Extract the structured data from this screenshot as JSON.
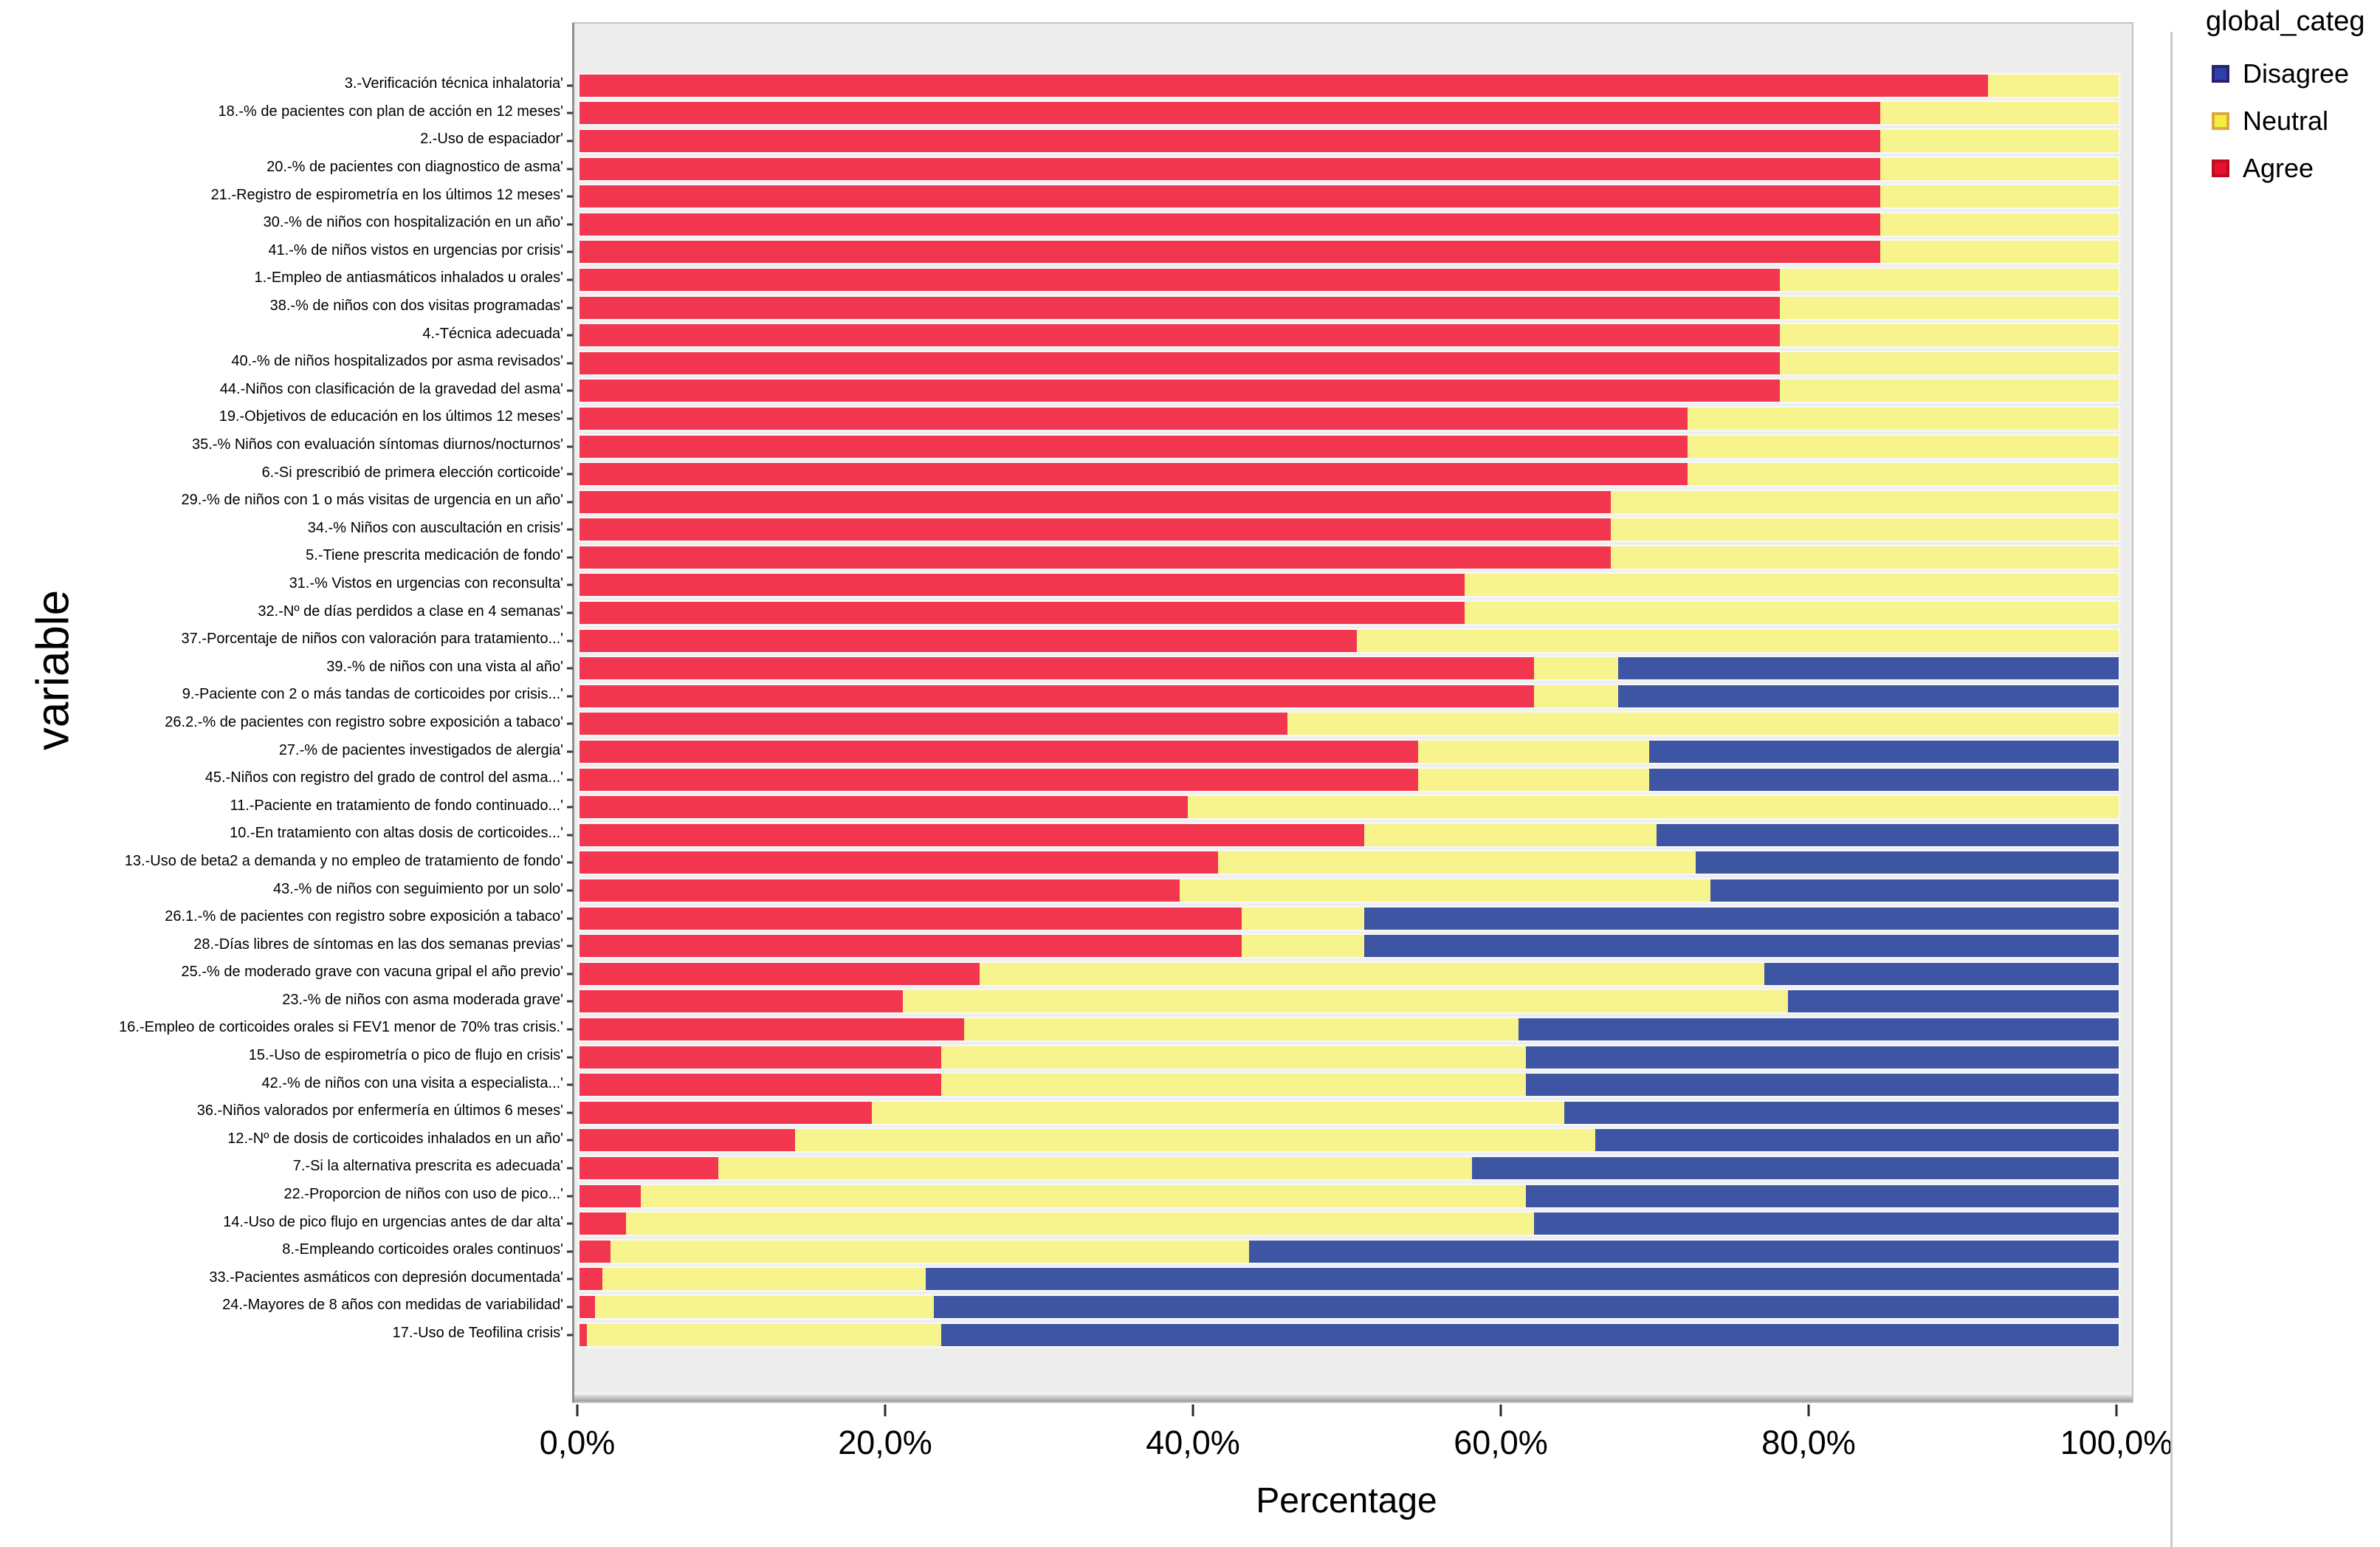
{
  "figure": {
    "y_axis_title": "variable",
    "x_axis_title": "Percentage",
    "legend": {
      "title": "global_categ",
      "items": [
        {
          "label": "Disagree",
          "fill": "#2E3FA8",
          "border": "#2a2370"
        },
        {
          "label": "Neutral",
          "fill": "#F5EE3F",
          "border": "#dfa93a"
        },
        {
          "label": "Agree",
          "fill": "#E9102C",
          "border": "#bb0e1e"
        }
      ]
    }
  },
  "chart_data": {
    "type": "bar",
    "orientation": "horizontal",
    "stacked": true,
    "title": "",
    "xlabel": "Percentage",
    "ylabel": "variable",
    "xlim": [
      0,
      100
    ],
    "grid": false,
    "legend_position": "top-right",
    "x_ticks": [
      "0,0%",
      "20,0%",
      "40,0%",
      "60,0%",
      "80,0%",
      "100,0%"
    ],
    "x_tick_values": [
      0,
      20,
      40,
      60,
      80,
      100
    ],
    "series_names": [
      "Agree",
      "Neutral",
      "Disagree"
    ],
    "colors": {
      "Agree": "#F2364F",
      "Neutral": "#F8F48D",
      "Disagree": "#3E55A4"
    },
    "rows": [
      {
        "label": "3.-Verificación técnica inhalatoria'",
        "agree": 91.5,
        "neutral": 8.5,
        "disagree": 0
      },
      {
        "label": "18.-% de pacientes con plan de acción en 12 meses'",
        "agree": 84.5,
        "neutral": 15.5,
        "disagree": 0
      },
      {
        "label": "2.-Uso de espaciador'",
        "agree": 84.5,
        "neutral": 15.5,
        "disagree": 0
      },
      {
        "label": "20.-% de pacientes con diagnostico de asma'",
        "agree": 84.5,
        "neutral": 15.5,
        "disagree": 0
      },
      {
        "label": "21.-Registro de espirometría en los últimos 12 meses'",
        "agree": 84.5,
        "neutral": 15.5,
        "disagree": 0
      },
      {
        "label": "30.-% de niños con hospitalización en un año'",
        "agree": 84.5,
        "neutral": 15.5,
        "disagree": 0
      },
      {
        "label": "41.-% de niños vistos en urgencias por crisis'",
        "agree": 84.5,
        "neutral": 15.5,
        "disagree": 0
      },
      {
        "label": "1.-Empleo de antiasmáticos inhalados u orales'",
        "agree": 78,
        "neutral": 22,
        "disagree": 0
      },
      {
        "label": "38.-% de niños con dos visitas programadas'",
        "agree": 78,
        "neutral": 22,
        "disagree": 0
      },
      {
        "label": "4.-Técnica adecuada'",
        "agree": 78,
        "neutral": 22,
        "disagree": 0
      },
      {
        "label": "40.-% de niños hospitalizados por asma revisados'",
        "agree": 78,
        "neutral": 22,
        "disagree": 0
      },
      {
        "label": "44.-Niños con clasificación de la gravedad del asma'",
        "agree": 78,
        "neutral": 22,
        "disagree": 0
      },
      {
        "label": "19.-Objetivos de educación en los últimos 12 meses'",
        "agree": 72,
        "neutral": 28,
        "disagree": 0
      },
      {
        "label": "35.-% Niños con evaluación síntomas diurnos/nocturnos'",
        "agree": 72,
        "neutral": 28,
        "disagree": 0
      },
      {
        "label": "6.-Si prescribió de primera elección corticoide'",
        "agree": 72,
        "neutral": 28,
        "disagree": 0
      },
      {
        "label": "29.-% de niños con 1 o más visitas de urgencia en un año'",
        "agree": 67,
        "neutral": 33,
        "disagree": 0
      },
      {
        "label": "34.-% Niños con auscultación en crisis'",
        "agree": 67,
        "neutral": 33,
        "disagree": 0
      },
      {
        "label": "5.-Tiene prescrita medicación de fondo'",
        "agree": 67,
        "neutral": 33,
        "disagree": 0
      },
      {
        "label": "31.-% Vistos en urgencias con reconsulta'",
        "agree": 57.5,
        "neutral": 42.5,
        "disagree": 0
      },
      {
        "label": "32.-Nº de días perdidos a clase en 4 semanas'",
        "agree": 57.5,
        "neutral": 42.5,
        "disagree": 0
      },
      {
        "label": "37.-Porcentaje de niños con valoración para tratamiento...'",
        "agree": 50.5,
        "neutral": 49.5,
        "disagree": 0
      },
      {
        "label": "39.-% de niños con una vista al año'",
        "agree": 62,
        "neutral": 5.5,
        "disagree": 32.5
      },
      {
        "label": "9.-Paciente con 2 o más tandas de corticoides por crisis...'",
        "agree": 62,
        "neutral": 5.5,
        "disagree": 32.5
      },
      {
        "label": "26.2.-% de pacientes con registro sobre exposición a tabaco'",
        "agree": 46,
        "neutral": 54,
        "disagree": 0
      },
      {
        "label": "27.-% de pacientes investigados de alergia'",
        "agree": 54.5,
        "neutral": 15,
        "disagree": 30.5
      },
      {
        "label": "45.-Niños con registro del grado de control del asma...'",
        "agree": 54.5,
        "neutral": 15,
        "disagree": 30.5
      },
      {
        "label": "11.-Paciente en tratamiento de fondo continuado...'",
        "agree": 39.5,
        "neutral": 60.5,
        "disagree": 0
      },
      {
        "label": "10.-En tratamiento con altas dosis de corticoides...'",
        "agree": 51,
        "neutral": 19,
        "disagree": 30
      },
      {
        "label": "13.-Uso de beta2 a demanda y no empleo de tratamiento de fondo'",
        "agree": 41.5,
        "neutral": 31,
        "disagree": 27.5
      },
      {
        "label": "43.-% de niños con seguimiento por un solo'",
        "agree": 39,
        "neutral": 34.5,
        "disagree": 26.5
      },
      {
        "label": "26.1.-% de pacientes con registro sobre exposición a tabaco'",
        "agree": 43,
        "neutral": 8,
        "disagree": 49
      },
      {
        "label": "28.-Días libres de síntomas en las dos semanas previas'",
        "agree": 43,
        "neutral": 8,
        "disagree": 49
      },
      {
        "label": "25.-% de moderado grave con vacuna gripal el año previo'",
        "agree": 26,
        "neutral": 51,
        "disagree": 23
      },
      {
        "label": "23.-% de niños con asma moderada grave'",
        "agree": 21,
        "neutral": 57.5,
        "disagree": 21.5
      },
      {
        "label": "16.-Empleo de corticoides orales si FEV1 menor de 70% tras crisis.'",
        "agree": 25,
        "neutral": 36,
        "disagree": 39
      },
      {
        "label": "15.-Uso de espirometría o pico de flujo en crisis'",
        "agree": 23.5,
        "neutral": 38,
        "disagree": 38.5
      },
      {
        "label": "42.-% de niños con una visita a especialista...'",
        "agree": 23.5,
        "neutral": 38,
        "disagree": 38.5
      },
      {
        "label": "36.-Niños valorados por enfermería en últimos 6 meses'",
        "agree": 19,
        "neutral": 45,
        "disagree": 36
      },
      {
        "label": "12.-Nº de dosis de corticoides inhalados en un año'",
        "agree": 14,
        "neutral": 52,
        "disagree": 34
      },
      {
        "label": "7.-Si la alternativa prescrita es adecuada'",
        "agree": 9,
        "neutral": 49,
        "disagree": 42
      },
      {
        "label": "22.-Proporcion de niños con uso de pico...'",
        "agree": 4,
        "neutral": 57.5,
        "disagree": 38.5
      },
      {
        "label": "14.-Uso de pico flujo en urgencias antes de dar alta'",
        "agree": 3,
        "neutral": 59,
        "disagree": 38
      },
      {
        "label": "8.-Empleando corticoides orales continuos'",
        "agree": 2,
        "neutral": 41.5,
        "disagree": 56.5
      },
      {
        "label": "33.-Pacientes asmáticos con depresión documentada'",
        "agree": 1.5,
        "neutral": 21,
        "disagree": 77.5
      },
      {
        "label": "24.-Mayores de 8 años con medidas de variabilidad'",
        "agree": 1,
        "neutral": 22,
        "disagree": 77
      },
      {
        "label": "17.-Uso de Teofilina crisis'",
        "agree": 0.5,
        "neutral": 23,
        "disagree": 76.5
      }
    ]
  }
}
